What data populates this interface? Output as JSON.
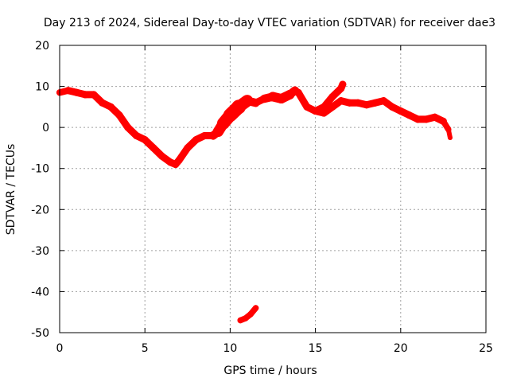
{
  "chart_data": {
    "type": "line",
    "title": "Day 213 of 2024, Sidereal Day-to-day VTEC variation (SDTVAR) for receiver dae3",
    "xlabel": "GPS time / hours",
    "ylabel": "SDTVAR / TECUs",
    "xlim": [
      0,
      25
    ],
    "ylim": [
      -50,
      20
    ],
    "xticks": [
      0,
      5,
      10,
      15,
      20,
      25
    ],
    "yticks": [
      -50,
      -40,
      -30,
      -20,
      -10,
      0,
      10,
      20
    ],
    "grid": true,
    "series_color": "#ff0000",
    "series": [
      {
        "name": "SDTVAR main trace",
        "x": [
          0,
          0.5,
          1,
          1.5,
          2,
          2.5,
          3,
          3.5,
          4,
          4.5,
          5,
          5.5,
          6,
          6.5,
          6.8,
          7,
          7.5,
          8,
          8.5,
          9,
          9.3,
          9.6,
          10,
          10.5,
          11,
          11.5,
          12,
          12.5,
          13,
          13.5,
          13.8,
          14,
          14.5,
          15,
          15.5,
          16,
          16.5,
          17,
          17.5,
          18,
          18.5,
          19,
          19.5,
          20,
          20.5,
          21,
          21.5,
          22,
          22.5,
          22.8,
          22.9
        ],
        "y": [
          8.5,
          9,
          8.5,
          8,
          8,
          6,
          5,
          3,
          0,
          -2,
          -3,
          -5,
          -7,
          -8.5,
          -9,
          -8,
          -5,
          -3,
          -2,
          -2,
          -1,
          1,
          3,
          5,
          6.5,
          6,
          7,
          7.5,
          7,
          8,
          9,
          8.5,
          5,
          4,
          3.5,
          5,
          6.5,
          6,
          6,
          5.5,
          6,
          6.5,
          5,
          4,
          3,
          2,
          2,
          2.5,
          1.5,
          -0.5,
          -2.5
        ],
        "width": [
          2.5,
          3,
          3,
          3,
          3,
          3,
          3,
          3,
          3,
          3,
          3,
          3,
          3,
          3,
          3,
          3,
          3,
          3,
          3,
          3,
          4,
          5,
          5.5,
          6,
          4,
          3,
          3,
          4,
          4,
          4,
          3,
          3,
          3,
          3,
          3,
          3,
          3,
          3,
          3,
          3,
          3,
          3,
          3,
          3,
          3,
          3,
          3,
          3,
          3,
          2,
          2
        ]
      },
      {
        "name": "SDTVAR second arc",
        "x": [
          15,
          15.5,
          16,
          16.5,
          16.6
        ],
        "y": [
          4,
          5,
          7.5,
          9.5,
          10.5
        ],
        "width": [
          3,
          3,
          3,
          3,
          3
        ]
      },
      {
        "name": "SDTVAR outlier segment",
        "x": [
          10.6,
          10.9,
          11.2,
          11.5
        ],
        "y": [
          -47,
          -46.5,
          -45.5,
          -44
        ],
        "width": [
          2.5,
          2.5,
          2.5,
          2.5
        ]
      }
    ]
  }
}
